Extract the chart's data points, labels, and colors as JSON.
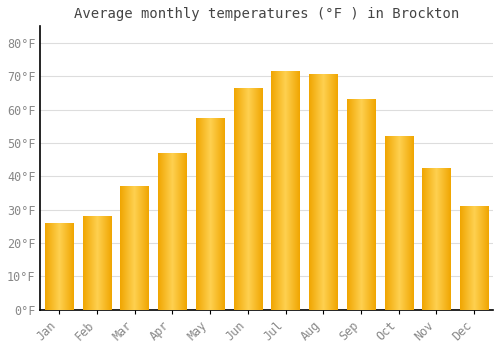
{
  "title": "Average monthly temperatures (°F ) in Brockton",
  "months": [
    "Jan",
    "Feb",
    "Mar",
    "Apr",
    "May",
    "Jun",
    "Jul",
    "Aug",
    "Sep",
    "Oct",
    "Nov",
    "Dec"
  ],
  "values": [
    26,
    28,
    37,
    47,
    57.5,
    66.5,
    71.5,
    70.5,
    63,
    52,
    42.5,
    31
  ],
  "bar_color_center": "#FFD966",
  "bar_color_edge": "#F0A500",
  "background_color": "#FFFFFF",
  "plot_bg_color": "#FFFFFF",
  "grid_color": "#DDDDDD",
  "tick_label_color": "#888888",
  "title_color": "#444444",
  "spine_color": "#000000",
  "ylim": [
    0,
    85
  ],
  "yticks": [
    0,
    10,
    20,
    30,
    40,
    50,
    60,
    70,
    80
  ],
  "ytick_labels": [
    "0°F",
    "10°F",
    "20°F",
    "30°F",
    "40°F",
    "50°F",
    "60°F",
    "70°F",
    "80°F"
  ],
  "figsize": [
    5.0,
    3.5
  ],
  "dpi": 100,
  "bar_width": 0.75
}
